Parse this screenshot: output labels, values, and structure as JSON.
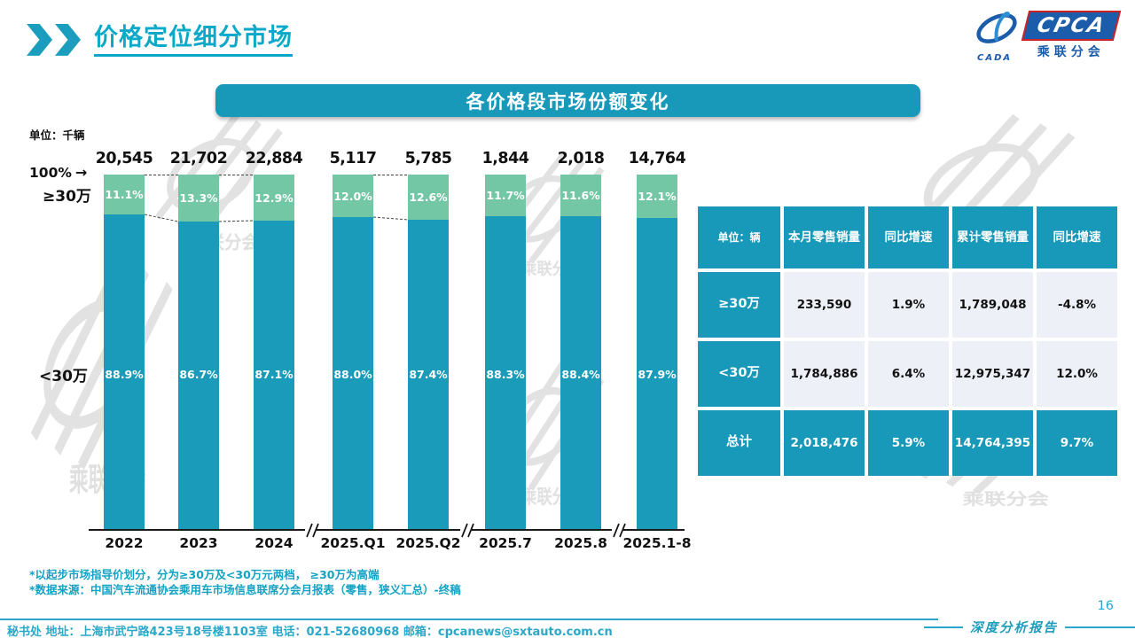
{
  "page": {
    "title": "价格定位细分市场",
    "page_number": "16",
    "report_type": "深度分析报告",
    "footer_contact": "秘书处  地址：上海市武宁路423号18号楼1103室  电话：021-52680968   邮箱：cpcanews@sxtauto.com.cn"
  },
  "icons": {
    "arrow_right": "→",
    "chevron": "double-chevron-right"
  },
  "logo": {
    "cpca": "CPCA",
    "sub_cn": "乘联分会",
    "cada": "CADA"
  },
  "banner": {
    "title": "各价格段市场份额变化"
  },
  "chart_data": {
    "type": "bar",
    "stacked": true,
    "unit_label": "单位：千辆",
    "axis_top_label": "100%",
    "series_labels": {
      "top": "≥30万",
      "bottom": "<30万"
    },
    "categories": [
      "2022",
      "2023",
      "2024",
      "2025.Q1",
      "2025.Q2",
      "2025.7",
      "2025.8",
      "2025.1-8"
    ],
    "totals": [
      "20,545",
      "21,702",
      "22,884",
      "5,117",
      "5,785",
      "1,844",
      "2,018",
      "14,764"
    ],
    "series": [
      {
        "name": "≥30万",
        "color": "#74C7A4",
        "values_pct": [
          11.1,
          13.3,
          12.9,
          12.0,
          12.6,
          11.7,
          11.6,
          12.1
        ]
      },
      {
        "name": "<30万",
        "color": "#1A9BBA",
        "values_pct": [
          88.9,
          86.7,
          87.1,
          88.0,
          87.4,
          88.3,
          88.4,
          87.9
        ]
      }
    ],
    "connected_pairs": [
      [
        0,
        1
      ],
      [
        1,
        2
      ],
      [
        3,
        4
      ]
    ],
    "axis_breaks_between": [
      [
        2,
        3
      ],
      [
        4,
        5
      ],
      [
        6,
        7
      ]
    ],
    "ylim": [
      0,
      100
    ],
    "grid": false,
    "legend_position": "left-axis-labels"
  },
  "table": {
    "headers": [
      "单位：辆",
      "本月零售销量",
      "同比增速",
      "累计零售销量",
      "同比增速"
    ],
    "rows": [
      {
        "label": "≥30万",
        "cells": [
          "233,590",
          "1.9%",
          "1,789,048",
          "-4.8%"
        ],
        "total": false
      },
      {
        "label": "<30万",
        "cells": [
          "1,784,886",
          "6.4%",
          "12,975,347",
          "12.0%"
        ],
        "total": false
      },
      {
        "label": "总计",
        "cells": [
          "2,018,476",
          "5.9%",
          "14,764,395",
          "9.7%"
        ],
        "total": true
      }
    ]
  },
  "footnotes": [
    "*以起步市场指导价划分，分为≥30万及<30万元两档，  ≥30万为高端",
    "*数据来源：中国汽车流通协会乘用车市场信息联席分会月报表（零售，狭义汇总）-终稿"
  ],
  "colors": {
    "teal": "#1A9BBA",
    "green": "#74C7A4",
    "accent_cyan": "#0BA9C9",
    "table_light_cell": "#EDF1F7",
    "logo_blue": "#1B5CAB",
    "logo_red": "#CC2222",
    "footer_teal": "#2AA7C9"
  }
}
